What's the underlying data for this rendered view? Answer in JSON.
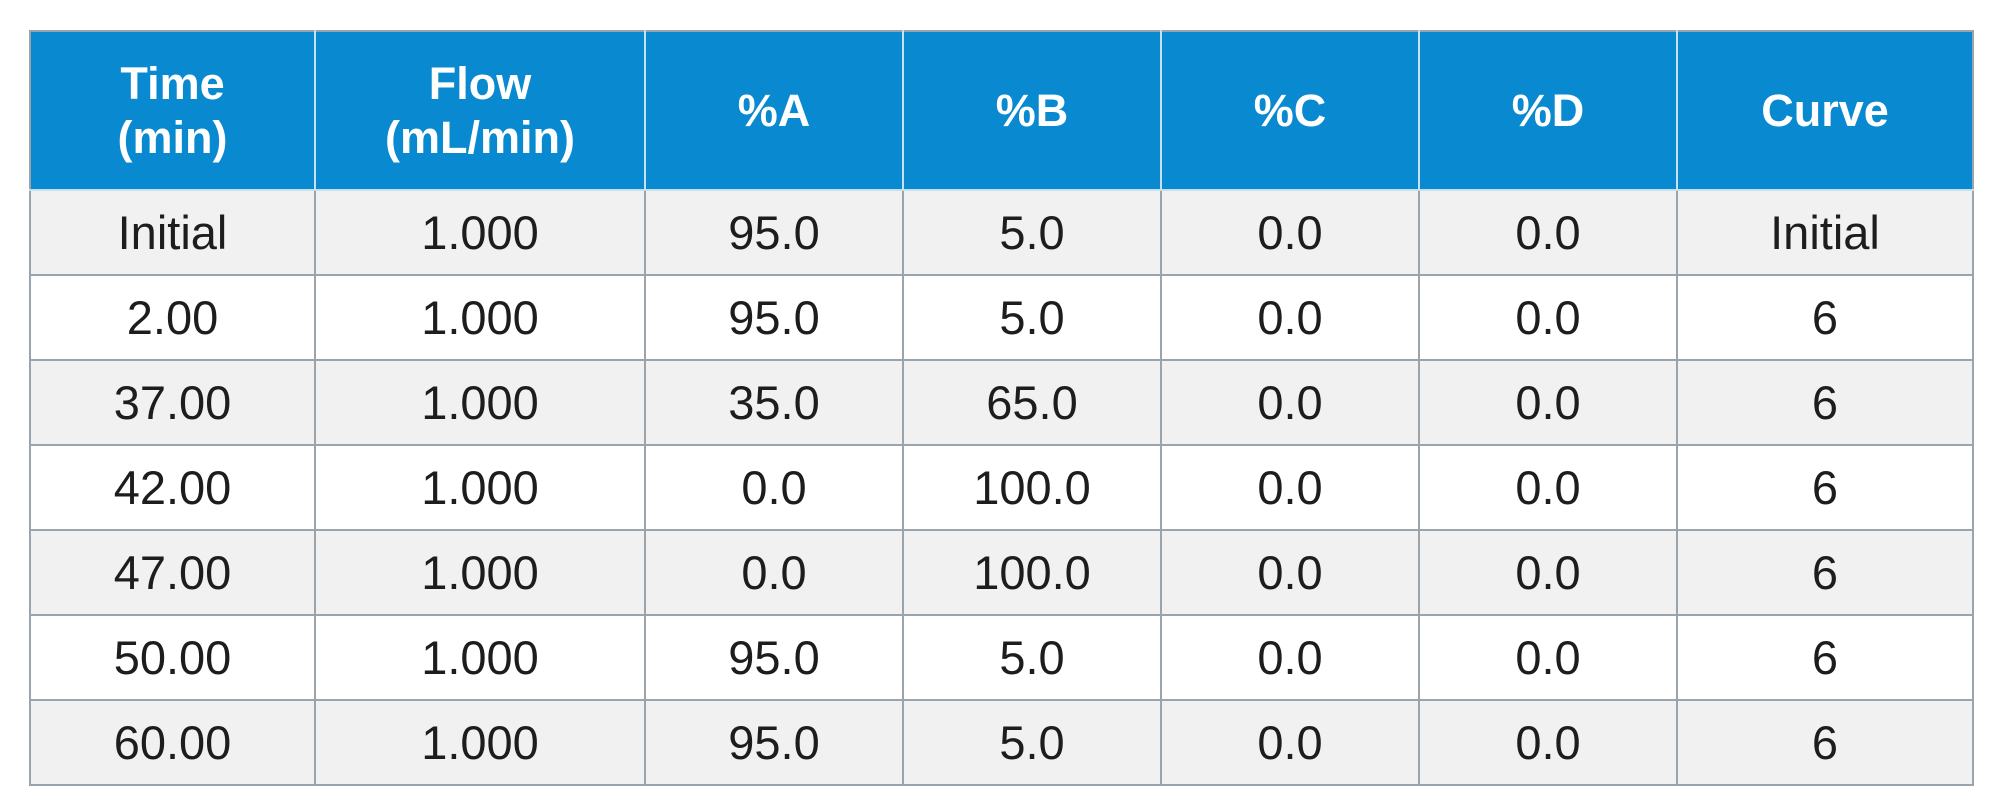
{
  "table": {
    "headers": [
      {
        "line1": "Time",
        "line2": "(min)"
      },
      {
        "line1": "Flow",
        "line2": "(mL/min)"
      },
      {
        "line1": "%A",
        "line2": ""
      },
      {
        "line1": "%B",
        "line2": ""
      },
      {
        "line1": "%C",
        "line2": ""
      },
      {
        "line1": "%D",
        "line2": ""
      },
      {
        "line1": "Curve",
        "line2": ""
      }
    ],
    "rows": [
      [
        "Initial",
        "1.000",
        "95.0",
        "5.0",
        "0.0",
        "0.0",
        "Initial"
      ],
      [
        "2.00",
        "1.000",
        "95.0",
        "5.0",
        "0.0",
        "0.0",
        "6"
      ],
      [
        "37.00",
        "1.000",
        "35.0",
        "65.0",
        "0.0",
        "0.0",
        "6"
      ],
      [
        "42.00",
        "1.000",
        "0.0",
        "100.0",
        "0.0",
        "0.0",
        "6"
      ],
      [
        "47.00",
        "1.000",
        "0.0",
        "100.0",
        "0.0",
        "0.0",
        "6"
      ],
      [
        "50.00",
        "1.000",
        "95.0",
        "5.0",
        "0.0",
        "0.0",
        "6"
      ],
      [
        "60.00",
        "1.000",
        "95.0",
        "5.0",
        "0.0",
        "0.0",
        "6"
      ]
    ]
  },
  "colors": {
    "header_bg": "#0989cf",
    "header_text": "#ffffff",
    "odd_row_bg": "#f1f1f2",
    "even_row_bg": "#ffffff",
    "grid": "#9aa4ad"
  }
}
